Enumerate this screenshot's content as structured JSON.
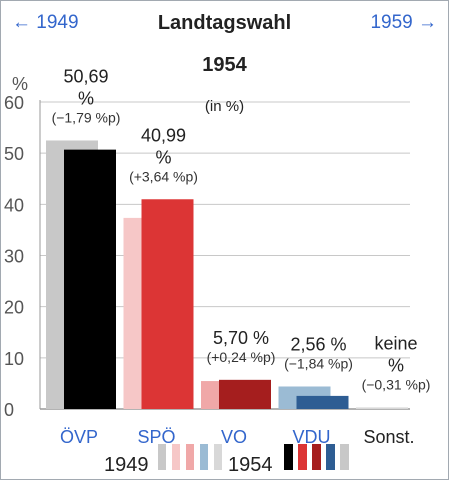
{
  "header": {
    "prev_label": "← 1949",
    "next_label": "1959 →",
    "title": "Landtagswahl",
    "subtitle": "1954",
    "unit": "(in %)"
  },
  "legend": {
    "prev_year": "1949",
    "curr_year": "1954"
  },
  "colors": {
    "grid": "#c8c8c8",
    "axis": "#9a9a9a",
    "link": "#3366cc",
    "text": "#222222"
  },
  "chart_data": {
    "type": "bar",
    "title": "Landtagswahl",
    "subtitle": "1954",
    "ylabel": "%",
    "ylim": [
      0,
      60
    ],
    "yticks": [
      0,
      10,
      20,
      30,
      40,
      50,
      60
    ],
    "categories": [
      "ÖVP",
      "SPÖ",
      "VO",
      "VDU",
      "Sonst."
    ],
    "category_links": [
      true,
      true,
      true,
      true,
      false
    ],
    "series": [
      {
        "name": "1949",
        "values": [
          52.48,
          37.35,
          5.46,
          4.4,
          0.31
        ],
        "colors": [
          "#c8c8c8",
          "#f6c7c7",
          "#f0a8a8",
          "#9bbbd4",
          "#d8d8d8"
        ]
      },
      {
        "name": "1954",
        "values": [
          50.69,
          40.99,
          5.7,
          2.56,
          null
        ],
        "colors": [
          "#000000",
          "#dc3535",
          "#a51e1e",
          "#2e5d93",
          "#c8c8c8"
        ]
      }
    ],
    "value_labels": [
      "50,69\n%",
      "40,99\n%",
      "5,70 %",
      "2,56 %",
      "keine\n%"
    ],
    "change_labels": [
      "(−1,79 %p)",
      "(+3,64 %p)",
      "(+0,24 %p)",
      "(−1,84 %p)",
      "(−0,31 %p)"
    ],
    "legend_swatches": {
      "prev": [
        "#c8c8c8",
        "#f6c7c7",
        "#f0a8a8",
        "#9bbbd4",
        "#d8d8d8"
      ],
      "curr": [
        "#000000",
        "#dc3535",
        "#a51e1e",
        "#2e5d93",
        "#c8c8c8"
      ]
    }
  }
}
